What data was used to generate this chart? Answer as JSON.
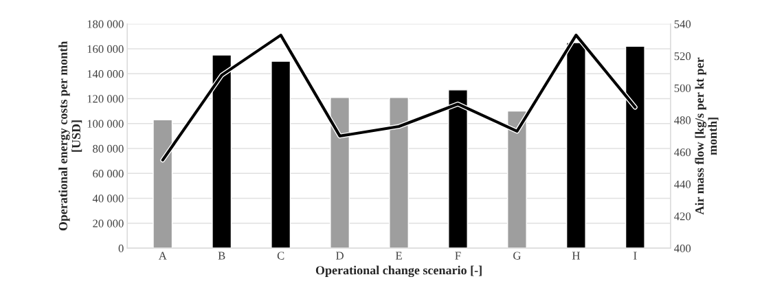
{
  "chart_data": {
    "type": "bar",
    "xlabel": "Operational change scenario [-]",
    "ylabel": "Operational energy costs per month\n[USD]",
    "y2label": "Air mass flow [kg/s per kt per\nmonth]",
    "categories": [
      "A",
      "B",
      "C",
      "D",
      "E",
      "F",
      "G",
      "H",
      "I"
    ],
    "series": [
      {
        "colors": [
          "#9e9e9e",
          "#000000",
          "#000000",
          "#9e9e9e",
          "#9e9e9e",
          "#000000",
          "#9e9e9e",
          "#000000",
          "#000000"
        ],
        "values": [
          103000,
          155000,
          150000,
          121000,
          121000,
          127000,
          110000,
          165000,
          162000
        ]
      },
      {
        "type": "line",
        "axis": "y2",
        "color": "#000000",
        "values": [
          455,
          508,
          533,
          470,
          476,
          490,
          473,
          533,
          488
        ]
      }
    ],
    "ylim": [
      0,
      180000
    ],
    "yticks": [
      0,
      {
        "value": 20000,
        "label": "20 000"
      },
      {
        "value": 40000,
        "label": "40 000"
      },
      {
        "value": 60000,
        "label": "60 000"
      },
      {
        "value": 80000,
        "label": "80 000"
      },
      {
        "value": 100000,
        "label": "100 000"
      },
      {
        "value": 120000,
        "label": "120 000"
      },
      {
        "value": 140000,
        "label": "140 000"
      },
      {
        "value": 160000,
        "label": "160 000"
      },
      {
        "value": 180000,
        "label": "180 000"
      }
    ],
    "y2lim": [
      400,
      540
    ],
    "y2ticks": [
      400,
      420,
      440,
      460,
      480,
      500,
      520,
      540
    ],
    "grid": "y",
    "legend": false,
    "marker": "none",
    "line_style": "solid"
  }
}
